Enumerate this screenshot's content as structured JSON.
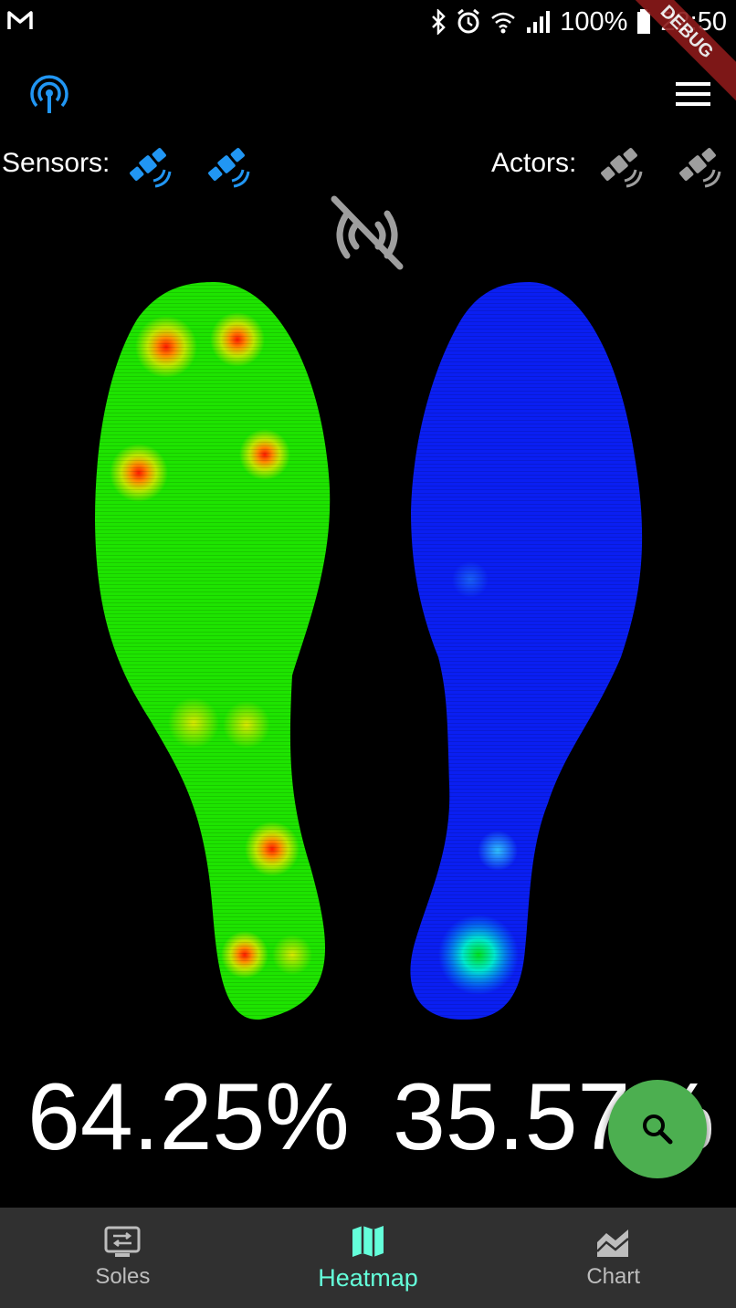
{
  "status_bar": {
    "battery": "100%",
    "time": "22:50",
    "debug_banner": "DEBUG"
  },
  "app_bar": {
    "leading_icon": "bluetooth-scan-icon",
    "trailing_icon": "menu-icon"
  },
  "devices": {
    "sensors_label": "Sensors:",
    "actors_label": "Actors:",
    "sensors": [
      {
        "icon": "satellite-icon",
        "connected": true,
        "color": "#2196f3"
      },
      {
        "icon": "satellite-icon",
        "connected": true,
        "color": "#2196f3"
      }
    ],
    "actors": [
      {
        "icon": "satellite-icon",
        "connected": false,
        "color": "#9e9e9e"
      },
      {
        "icon": "satellite-icon",
        "connected": false,
        "color": "#9e9e9e"
      }
    ],
    "signal_icon": "no-signal-icon"
  },
  "heatmap": {
    "left_sole_color": "#1ee400",
    "right_sole_color": "#0a1ff2",
    "hot_color": "#ff1a00"
  },
  "distribution": {
    "left": "64.25%",
    "right": "35.57%"
  },
  "fab": {
    "icon": "search-icon",
    "color": "#4caf50"
  },
  "bottom_nav": {
    "items": [
      {
        "label": "Soles",
        "icon": "soles-icon",
        "active": false
      },
      {
        "label": "Heatmap",
        "icon": "map-icon",
        "active": true
      },
      {
        "label": "Chart",
        "icon": "chart-icon",
        "active": false
      }
    ],
    "active_color": "#64ffda",
    "inactive_color": "#bdbdbd"
  }
}
